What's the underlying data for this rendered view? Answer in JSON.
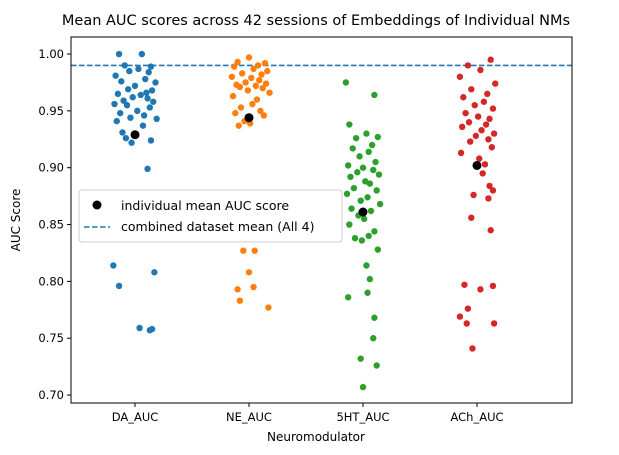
{
  "chart_data": {
    "type": "scatter",
    "title": "Mean AUC scores across 42 sessions of Embeddings of Individual NMs",
    "xlabel": "Neuromodulator",
    "ylabel": "AUC Score",
    "ylim": [
      0.693,
      1.015
    ],
    "yticks": [
      0.7,
      0.75,
      0.8,
      0.85,
      0.9,
      0.95,
      1.0
    ],
    "ytick_labels": [
      "0.70",
      "0.75",
      "0.80",
      "0.85",
      "0.90",
      "0.95",
      "1.00"
    ],
    "categories": [
      "DA_AUC",
      "NE_AUC",
      "5HT_AUC",
      "ACh_AUC"
    ],
    "grid": false,
    "legend_position": "center-left",
    "legend": [
      {
        "label": "individual mean AUC score",
        "marker": "circle",
        "color": "#000000"
      },
      {
        "label": "combined dataset mean (All 4)",
        "marker": "dashed-line",
        "color": "#1f77b4"
      }
    ],
    "combined_mean": 0.99,
    "series": [
      {
        "category": "DA_AUC",
        "color": "#1f77b4",
        "mean": 0.929,
        "jitter": [
          -0.14,
          0.06,
          -0.09,
          0.14,
          0.03,
          -0.05,
          0.12,
          -0.17,
          0.09,
          -0.12,
          0.18,
          0.0,
          -0.06,
          0.15,
          0.1,
          -0.15,
          0.05,
          -0.02,
          0.11,
          -0.1,
          0.16,
          -0.18,
          -0.07,
          0.13,
          0.02,
          -0.13,
          0.08,
          -0.04,
          0.19,
          -0.16,
          0.07,
          -0.11,
          -0.08,
          0.14,
          -0.03,
          0.11,
          -0.19,
          0.17,
          -0.14,
          0.04,
          0.13,
          0.15
        ],
        "values": [
          1.0,
          1.0,
          0.99,
          0.989,
          0.987,
          0.985,
          0.984,
          0.981,
          0.978,
          0.976,
          0.975,
          0.972,
          0.969,
          0.968,
          0.966,
          0.965,
          0.964,
          0.962,
          0.961,
          0.959,
          0.958,
          0.956,
          0.955,
          0.953,
          0.95,
          0.948,
          0.946,
          0.944,
          0.943,
          0.941,
          0.937,
          0.931,
          0.926,
          0.924,
          0.922,
          0.899,
          0.814,
          0.808,
          0.796,
          0.759,
          0.757,
          0.758
        ]
      },
      {
        "category": "NE_AUC",
        "color": "#ff7f0e",
        "mean": 0.944,
        "jitter": [
          0.0,
          -0.1,
          0.14,
          0.08,
          -0.13,
          0.04,
          0.16,
          -0.06,
          0.11,
          -0.15,
          0.02,
          0.09,
          -0.03,
          0.15,
          -0.11,
          0.06,
          -0.08,
          0.12,
          -0.01,
          0.18,
          -0.14,
          0.07,
          0.03,
          -0.07,
          0.1,
          -0.12,
          0.13,
          -0.04,
          0.01,
          -0.09,
          0.05,
          -0.05,
          0.0,
          0.04,
          -0.1,
          -0.08,
          0.17
        ],
        "values": [
          0.997,
          0.993,
          0.992,
          0.99,
          0.989,
          0.987,
          0.985,
          0.983,
          0.982,
          0.98,
          0.979,
          0.977,
          0.975,
          0.974,
          0.973,
          0.972,
          0.971,
          0.97,
          0.968,
          0.966,
          0.963,
          0.96,
          0.956,
          0.953,
          0.95,
          0.948,
          0.946,
          0.941,
          0.939,
          0.937,
          0.827,
          0.827,
          0.808,
          0.795,
          0.793,
          0.783,
          0.777
        ]
      },
      {
        "category": "5HT_AUC",
        "color": "#2ca02c",
        "mean": 0.861,
        "jitter": [
          -0.15,
          0.1,
          -0.12,
          0.03,
          0.13,
          -0.06,
          0.08,
          -0.09,
          0.05,
          -0.03,
          0.11,
          -0.13,
          0.0,
          0.09,
          -0.05,
          0.14,
          -0.11,
          0.02,
          0.06,
          -0.08,
          0.12,
          -0.14,
          0.04,
          -0.02,
          0.15,
          -0.1,
          0.07,
          -0.04,
          0.01,
          -0.12,
          0.1,
          0.05,
          -0.07,
          -0.01,
          0.13,
          0.03,
          0.06,
          0.04,
          -0.13,
          0.1,
          0.09,
          -0.02,
          0.12,
          0.0
        ],
        "values": [
          0.975,
          0.964,
          0.938,
          0.93,
          0.927,
          0.926,
          0.92,
          0.917,
          0.914,
          0.91,
          0.905,
          0.902,
          0.9,
          0.898,
          0.896,
          0.894,
          0.892,
          0.888,
          0.886,
          0.882,
          0.88,
          0.877,
          0.874,
          0.871,
          0.868,
          0.864,
          0.862,
          0.858,
          0.855,
          0.85,
          0.844,
          0.84,
          0.838,
          0.836,
          0.828,
          0.814,
          0.802,
          0.79,
          0.786,
          0.768,
          0.75,
          0.732,
          0.726,
          0.707
        ]
      },
      {
        "category": "ACh_AUC",
        "color": "#d62728",
        "mean": 0.902,
        "jitter": [
          0.12,
          -0.08,
          0.03,
          -0.15,
          0.16,
          -0.05,
          0.09,
          -0.12,
          0.06,
          -0.02,
          0.14,
          -0.1,
          0.01,
          0.11,
          -0.07,
          0.08,
          -0.13,
          0.04,
          0.15,
          -0.01,
          0.1,
          -0.06,
          0.13,
          -0.14,
          0.02,
          0.07,
          0.05,
          0.11,
          0.14,
          -0.03,
          0.1,
          -0.05,
          0.12,
          -0.11,
          0.14,
          0.03,
          -0.08,
          -0.15,
          -0.09,
          -0.04,
          0.15
        ],
        "values": [
          0.995,
          0.99,
          0.986,
          0.98,
          0.974,
          0.969,
          0.965,
          0.962,
          0.958,
          0.955,
          0.952,
          0.948,
          0.945,
          0.943,
          0.94,
          0.938,
          0.936,
          0.933,
          0.93,
          0.928,
          0.925,
          0.923,
          0.918,
          0.913,
          0.908,
          0.903,
          0.895,
          0.884,
          0.88,
          0.876,
          0.873,
          0.856,
          0.845,
          0.797,
          0.796,
          0.793,
          0.776,
          0.769,
          0.763,
          0.741,
          0.763
        ]
      }
    ]
  }
}
